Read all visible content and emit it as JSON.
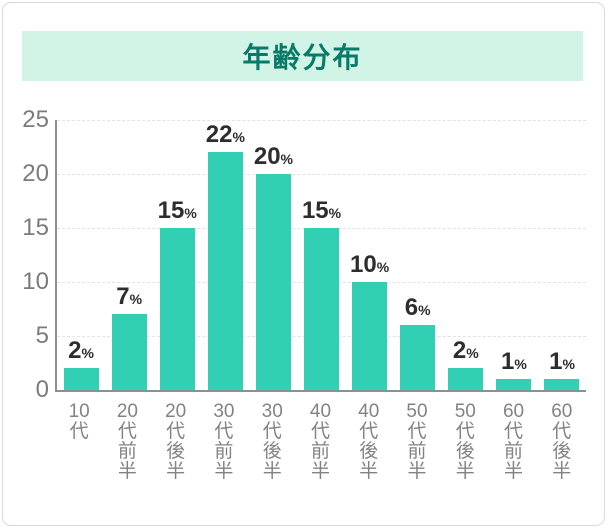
{
  "title": "年齢分布",
  "chart_data": {
    "type": "bar",
    "title": "年齢分布",
    "categories": [
      "10代",
      "20代前半",
      "20代後半",
      "30代前半",
      "30代後半",
      "40代前半",
      "40代後半",
      "50代前半",
      "50代後半",
      "60代前半",
      "60代後半"
    ],
    "values": [
      2,
      7,
      15,
      22,
      20,
      15,
      10,
      6,
      2,
      1,
      1
    ],
    "value_suffix": "%",
    "xlabel": "",
    "ylabel": "",
    "ylim": [
      0,
      25
    ],
    "yticks": [
      0,
      5,
      10,
      15,
      20,
      25
    ],
    "grid": "horizontal-dashed",
    "legend": "none",
    "colors": {
      "bar": "#31cfb4",
      "title_text": "#087a68",
      "title_background": "#d2f4e7",
      "axis_line": "#8f8f8f",
      "tick_text": "#7b7b7b",
      "x_label_text": "#838383",
      "value_text": "#2d2d2d",
      "gridline": "#e0e4e2",
      "card_border": "#d9d9d9",
      "background": "#ffffff"
    }
  }
}
